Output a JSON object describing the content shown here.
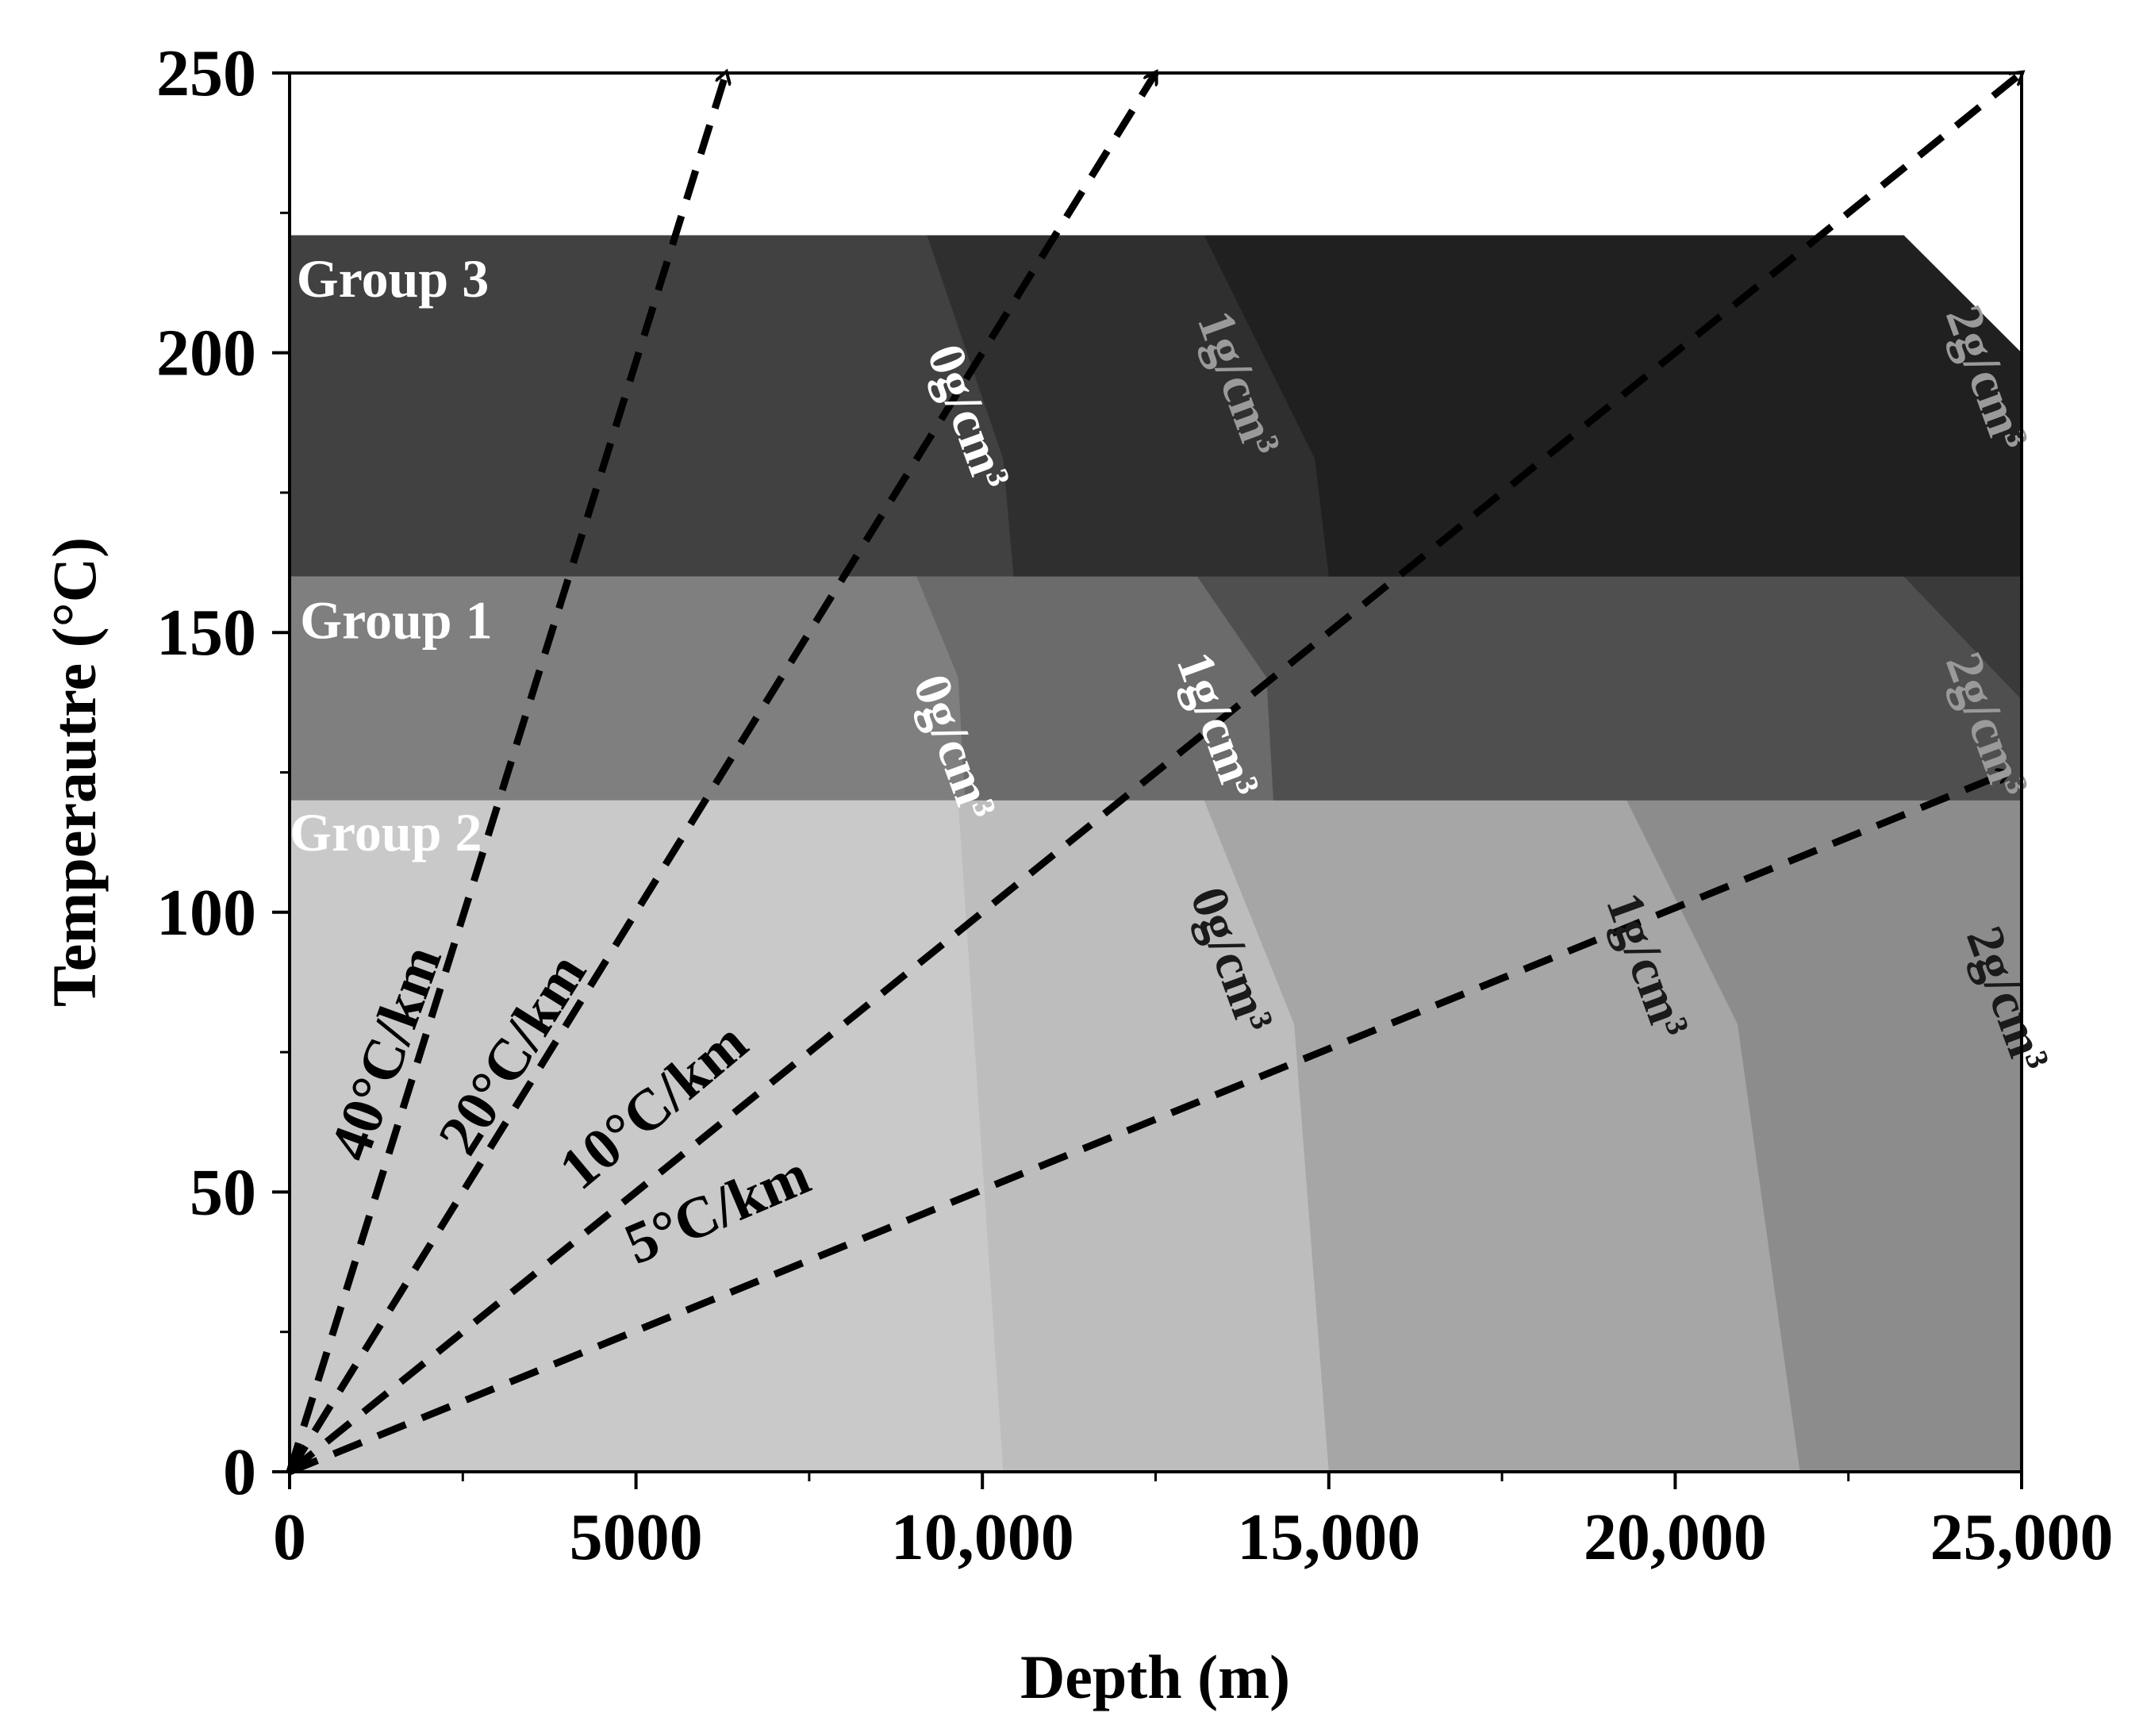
{
  "chart_data": {
    "type": "area",
    "xlabel": "Depth (m)",
    "ylabel": "Temperautre (°C)",
    "xlim": [
      0,
      25000
    ],
    "ylim": [
      0,
      250
    ],
    "x_ticks": [
      0,
      5000,
      10000,
      15000,
      20000,
      25000
    ],
    "x_tick_labels": [
      "0",
      "5000",
      "10,000",
      "15,000",
      "20,000",
      "25,000"
    ],
    "y_ticks": [
      0,
      50,
      100,
      150,
      200,
      250
    ],
    "y_tick_labels": [
      "0",
      "50",
      "100",
      "150",
      "200",
      "250"
    ],
    "grid": false,
    "colors": {
      "group2_base": "#c9c9c9",
      "group2_0g": "#bdbdbd",
      "group2_1g": "#a6a6a6",
      "group2_2g": "#8c8c8c",
      "group1_base": "#7f7f7f",
      "group1_0g": "#6b6b6b",
      "group1_1g": "#4f4f4f",
      "group1_2g": "#3a3a3a",
      "group3_base": "#414141",
      "group3_0g": "#2f2f2f",
      "group3_1g": "#202020",
      "group3_2g": "#1a1a1a",
      "gradient_line": "#000000",
      "label_light": "#ffffff",
      "label_grey": "#9a9a9a",
      "label_dark": "#1a1a1a"
    },
    "groups": [
      {
        "name": "Group 2",
        "temp_range": [
          0,
          120
        ],
        "boundaries": [
          {
            "label": "0g/cm³",
            "points": [
              [
                9650,
                120
              ],
              [
                10300,
                0
              ]
            ]
          },
          {
            "label": "0g/cm³",
            "points": [
              [
                13200,
                120
              ],
              [
                14500,
                80
              ],
              [
                15000,
                0
              ]
            ]
          },
          {
            "label": "1g/cm³",
            "points": [
              [
                19300,
                120
              ],
              [
                20900,
                80
              ],
              [
                21800,
                0
              ]
            ]
          },
          {
            "label": "2g/cm³",
            "points": [
              [
                25000,
                120
              ],
              [
                25000,
                0
              ]
            ]
          }
        ]
      },
      {
        "name": "Group 1",
        "temp_range": [
          120,
          160
        ],
        "boundaries": [
          {
            "label": "0g/cm³",
            "points": [
              [
                9050,
                160
              ],
              [
                9650,
                142
              ],
              [
                9750,
                120
              ]
            ]
          },
          {
            "label": "1g/cm³",
            "points": [
              [
                13100,
                160
              ],
              [
                14100,
                142
              ],
              [
                14200,
                120
              ]
            ]
          },
          {
            "label": "2g/cm³",
            "points": [
              [
                23300,
                160
              ],
              [
                25000,
                138
              ],
              [
                25000,
                120
              ]
            ]
          }
        ]
      },
      {
        "name": "Group 3",
        "temp_range": [
          160,
          221
        ],
        "boundaries": [
          {
            "label": "0g/cm³",
            "points": [
              [
                9200,
                221
              ],
              [
                10300,
                181
              ],
              [
                10450,
                160
              ]
            ]
          },
          {
            "label": "1g/cm³",
            "points": [
              [
                13200,
                221
              ],
              [
                14800,
                181
              ],
              [
                15000,
                160
              ]
            ]
          },
          {
            "label": "2g/cm³",
            "points": [
              [
                23300,
                221
              ],
              [
                25000,
                200
              ],
              [
                25000,
                160
              ]
            ]
          }
        ]
      }
    ],
    "gradients": [
      {
        "label": "40°C/km",
        "value": 40,
        "end": [
          6300,
          250
        ]
      },
      {
        "label": "20°C/km",
        "value": 20,
        "end": [
          12500,
          250
        ]
      },
      {
        "label": "10°C/km",
        "value": 10,
        "end": [
          25000,
          250
        ]
      },
      {
        "label": "5°C/km",
        "value": 5,
        "end": [
          24800,
          125
        ]
      }
    ],
    "density_labels": [
      {
        "text": "0g/cm³",
        "group": "Group 3",
        "at": [
          9200,
          200
        ],
        "tone": "light"
      },
      {
        "text": "1g/cm³",
        "group": "Group 3",
        "at": [
          13100,
          206
        ],
        "tone": "grey"
      },
      {
        "text": "2g/cm³",
        "group": "Group 3",
        "at": [
          23900,
          207
        ],
        "tone": "grey"
      },
      {
        "text": "0g/cm³",
        "group": "Group 1",
        "at": [
          9000,
          141
        ],
        "tone": "light"
      },
      {
        "text": "1g/cm³",
        "group": "Group 1",
        "at": [
          12800,
          145
        ],
        "tone": "light"
      },
      {
        "text": "2g/cm³",
        "group": "Group 1",
        "at": [
          23900,
          145
        ],
        "tone": "grey"
      },
      {
        "text": "0g/cm³",
        "group": "Group 2",
        "at": [
          13000,
          103
        ],
        "tone": "dark"
      },
      {
        "text": "1g/cm³",
        "group": "Group 2",
        "at": [
          19000,
          102
        ],
        "tone": "dark"
      },
      {
        "text": "2g/cm³",
        "group": "Group 2",
        "at": [
          24200,
          96
        ],
        "tone": "dark"
      }
    ],
    "group_labels": [
      {
        "text": "Group 3",
        "at": [
          100,
          210
        ]
      },
      {
        "text": "Group 1",
        "at": [
          150,
          149
        ]
      },
      {
        "text": "Group 2",
        "at": [
          0,
          111
        ]
      }
    ],
    "gradient_labels": [
      {
        "text": "40°C/km",
        "at": [
          1100,
          55
        ],
        "angle": -70
      },
      {
        "text": "20°C/km",
        "at": [
          2600,
          56
        ],
        "angle": -58
      },
      {
        "text": "10°C/km",
        "at": [
          4200,
          50
        ],
        "angle": -40
      },
      {
        "text": "5°C/km",
        "at": [
          5000,
          37
        ],
        "angle": -23
      }
    ]
  }
}
